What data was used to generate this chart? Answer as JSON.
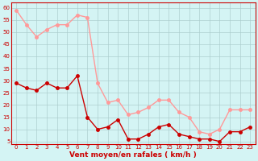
{
  "hours": [
    0,
    1,
    2,
    3,
    4,
    5,
    6,
    7,
    8,
    9,
    10,
    11,
    12,
    13,
    14,
    15,
    16,
    17,
    18,
    19,
    20,
    21,
    22,
    23
  ],
  "wind_mean": [
    29,
    27,
    26,
    29,
    27,
    27,
    32,
    15,
    10,
    11,
    14,
    6,
    6,
    8,
    11,
    12,
    8,
    7,
    6,
    6,
    5,
    9,
    9,
    11
  ],
  "wind_gust": [
    59,
    53,
    48,
    51,
    53,
    53,
    57,
    56,
    29,
    21,
    22,
    16,
    17,
    19,
    22,
    22,
    17,
    15,
    9,
    8,
    10,
    18,
    18,
    18
  ],
  "xlabel": "Vent moyen/en rafales ( km/h )",
  "yticks": [
    5,
    10,
    15,
    20,
    25,
    30,
    35,
    40,
    45,
    50,
    55,
    60
  ],
  "ylim": [
    4,
    62
  ],
  "xlim": [
    -0.5,
    23.5
  ],
  "bg_color": "#d4f4f4",
  "grid_color": "#aacccc",
  "line_color_mean": "#cc0000",
  "line_color_gust": "#ff9999",
  "marker_size": 2.5,
  "line_width": 1.0
}
